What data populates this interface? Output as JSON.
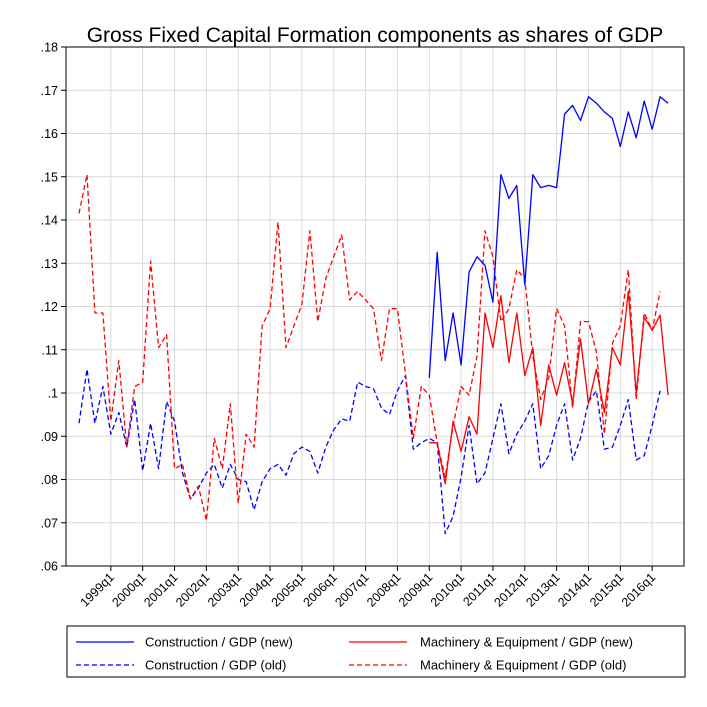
{
  "chart_data": {
    "type": "line",
    "title": "Gross Fixed Capital Formation components as shares of GDP",
    "xlabel": "",
    "ylabel": "",
    "ylim": [
      0.06,
      0.18
    ],
    "y_ticks": [
      0.06,
      0.07,
      0.08,
      0.09,
      0.1,
      0.11,
      0.12,
      0.13,
      0.14,
      0.15,
      0.16,
      0.17,
      0.18
    ],
    "y_tick_labels": [
      ".06",
      ".07",
      ".08",
      ".09",
      ".1",
      ".11",
      ".12",
      ".13",
      ".14",
      ".15",
      ".16",
      ".17",
      ".18"
    ],
    "x_start": "1998q1",
    "x_tick_labels": [
      "1999q1",
      "2000q1",
      "2001q1",
      "2002q1",
      "2003q1",
      "2004q1",
      "2005q1",
      "2006q1",
      "2007q1",
      "2008q1",
      "2009q1",
      "2010q1",
      "2011q1",
      "2012q1",
      "2013q1",
      "2014q1",
      "2015q1",
      "2016q1"
    ],
    "x_tick_index": [
      4,
      8,
      12,
      16,
      20,
      24,
      28,
      32,
      36,
      40,
      44,
      48,
      52,
      56,
      60,
      64,
      68,
      72
    ],
    "x_range": [
      0,
      76
    ],
    "grid": true,
    "legend_position": "bottom",
    "series": [
      {
        "name": "Construction / GDP (new)",
        "color": "#0000ff",
        "style": "solid",
        "start_index": 44,
        "values": [
          0.1035,
          0.1325,
          0.1075,
          0.1185,
          0.1065,
          0.128,
          0.1315,
          0.1295,
          0.121,
          0.1505,
          0.145,
          0.148,
          0.125,
          0.1505,
          0.1475,
          0.148,
          0.1475,
          0.1645,
          0.1665,
          0.163,
          0.1685,
          0.167,
          0.165,
          0.1635,
          0.157,
          0.165,
          0.159,
          0.1675,
          0.161,
          0.1685,
          0.167
        ]
      },
      {
        "name": "Construction  / GDP (old)",
        "color": "#0000ff",
        "style": "dashed",
        "start_index": 0,
        "values": [
          0.093,
          0.1055,
          0.093,
          0.1015,
          0.0905,
          0.0955,
          0.0875,
          0.0985,
          0.082,
          0.093,
          0.0825,
          0.098,
          0.0935,
          0.0815,
          0.0755,
          0.078,
          0.0815,
          0.0835,
          0.078,
          0.0835,
          0.08,
          0.0795,
          0.073,
          0.0795,
          0.0825,
          0.0835,
          0.081,
          0.086,
          0.0875,
          0.0865,
          0.0815,
          0.0875,
          0.0915,
          0.094,
          0.0935,
          0.1025,
          0.1015,
          0.101,
          0.0965,
          0.095,
          0.1005,
          0.104,
          0.087,
          0.0885,
          0.0895,
          0.0885,
          0.0675,
          0.0715,
          0.0805,
          0.0925,
          0.079,
          0.0815,
          0.0895,
          0.0975,
          0.086,
          0.0905,
          0.0935,
          0.0975,
          0.0825,
          0.0855,
          0.0925,
          0.0975,
          0.0845,
          0.0895,
          0.098,
          0.1005,
          0.087,
          0.0875,
          0.0925,
          0.0985,
          0.0845,
          0.0855,
          0.0925,
          0.1005
        ]
      },
      {
        "name": "Machinery & Equipment / GDP (new)",
        "color": "#ff0000",
        "style": "solid",
        "start_index": 44,
        "values": [
          0.0885,
          0.0885,
          0.079,
          0.0935,
          0.0865,
          0.0945,
          0.0905,
          0.1185,
          0.1105,
          0.1225,
          0.107,
          0.1185,
          0.104,
          0.1105,
          0.0925,
          0.1065,
          0.0995,
          0.107,
          0.0975,
          0.1125,
          0.0975,
          0.1055,
          0.0955,
          0.1105,
          0.1065,
          0.1235,
          0.1,
          0.1175,
          0.1145,
          0.118,
          0.0995
        ]
      },
      {
        "name": "Machinery & Equipment / GDP (old)",
        "color": "#ff0000",
        "style": "dashed",
        "start_index": 0,
        "values": [
          0.1415,
          0.1505,
          0.1185,
          0.1185,
          0.0935,
          0.1075,
          0.0875,
          0.1015,
          0.1025,
          0.1305,
          0.1105,
          0.1135,
          0.0825,
          0.0835,
          0.0755,
          0.0785,
          0.0705,
          0.0895,
          0.0825,
          0.0975,
          0.0745,
          0.0905,
          0.0875,
          0.1155,
          0.1195,
          0.1395,
          0.1105,
          0.1155,
          0.1205,
          0.1375,
          0.1165,
          0.1265,
          0.1315,
          0.1365,
          0.1215,
          0.1235,
          0.1215,
          0.1195,
          0.1075,
          0.1195,
          0.1195,
          0.1045,
          0.0895,
          0.1015,
          0.0995,
          0.0885,
          0.0805,
          0.0925,
          0.1015,
          0.0995,
          0.1085,
          0.1375,
          0.1315,
          0.1165,
          0.1195,
          0.1285,
          0.1265,
          0.1085,
          0.0985,
          0.1035,
          0.1195,
          0.1155,
          0.0965,
          0.1165,
          0.1165,
          0.1095,
          0.0905,
          0.1115,
          0.1155,
          0.1285,
          0.0985,
          0.1185,
          0.1145,
          0.1235
        ]
      }
    ]
  }
}
